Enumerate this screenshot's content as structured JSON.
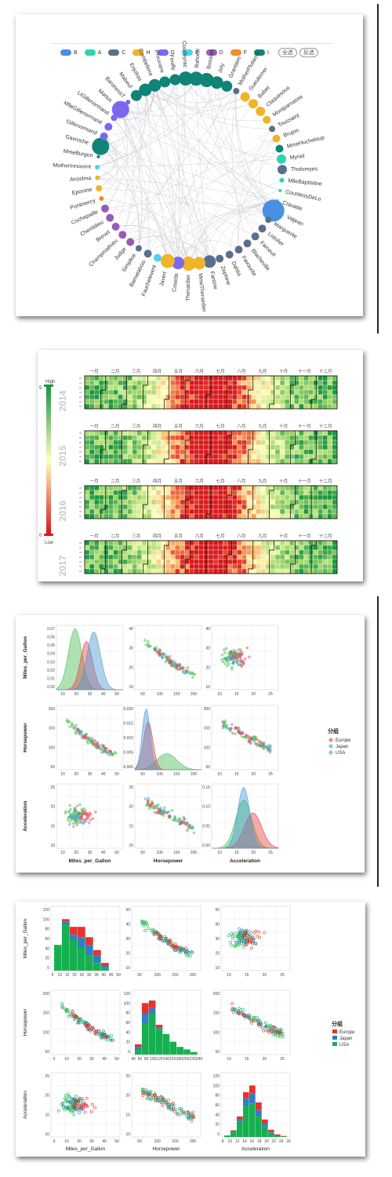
{
  "network": {
    "legend": [
      {
        "label": "B",
        "color": "#4a90e2"
      },
      {
        "label": "A",
        "color": "#2dd4b4"
      },
      {
        "label": "C",
        "color": "#5a6f8f"
      },
      {
        "label": "H",
        "color": "#f0b428"
      },
      {
        "label": "G",
        "color": "#7b68ee"
      },
      {
        "label": "E",
        "color": "#4fd1e8"
      },
      {
        "label": "D",
        "color": "#9b59b6"
      },
      {
        "label": "F",
        "color": "#f08c2a"
      },
      {
        "label": "I",
        "color": "#108476"
      }
    ],
    "buttons": [
      "全选",
      "反选"
    ],
    "nodes": [
      {
        "name": "Bahorel",
        "cat": "I",
        "size": 9
      },
      {
        "name": "Bossuet",
        "cat": "I",
        "size": 9
      },
      {
        "name": "Joly",
        "cat": "I",
        "size": 8
      },
      {
        "name": "Grantaire",
        "cat": "I",
        "size": 7
      },
      {
        "name": "MotherPlutarch",
        "cat": "C",
        "size": 4
      },
      {
        "name": "Gueulemer",
        "cat": "H",
        "size": 6
      },
      {
        "name": "Babet",
        "cat": "H",
        "size": 6
      },
      {
        "name": "Claquesous",
        "cat": "H",
        "size": 6
      },
      {
        "name": "Montparnasse",
        "cat": "H",
        "size": 5
      },
      {
        "name": "Toussaint",
        "cat": "C",
        "size": 4
      },
      {
        "name": "Brujon",
        "cat": "H",
        "size": 5
      },
      {
        "name": "MmeHucheloup",
        "cat": "I",
        "size": 5
      },
      {
        "name": "Myriel",
        "cat": "A",
        "size": 6
      },
      {
        "name": "Tholomyes",
        "cat": "C",
        "size": 6
      },
      {
        "name": "MlleBaptistine",
        "cat": "A",
        "size": 3
      },
      {
        "name": "CountessDeLo",
        "cat": "A",
        "size": 2
      },
      {
        "name": "Cravatte",
        "cat": "A",
        "size": 2
      },
      {
        "name": "Valjean",
        "cat": "B",
        "size": 14
      },
      {
        "name": "Marguerite",
        "cat": "C",
        "size": 4
      },
      {
        "name": "Listolier",
        "cat": "C",
        "size": 5
      },
      {
        "name": "Fameuil",
        "cat": "C",
        "size": 5
      },
      {
        "name": "Blacheville",
        "cat": "C",
        "size": 5
      },
      {
        "name": "Favourite",
        "cat": "C",
        "size": 5
      },
      {
        "name": "Dahlia",
        "cat": "C",
        "size": 5
      },
      {
        "name": "Zephine",
        "cat": "C",
        "size": 5
      },
      {
        "name": "Fantine",
        "cat": "C",
        "size": 8
      },
      {
        "name": "MmeThenardier",
        "cat": "H",
        "size": 8
      },
      {
        "name": "Thenardier",
        "cat": "H",
        "size": 9
      },
      {
        "name": "Cosette",
        "cat": "G",
        "size": 8
      },
      {
        "name": "Javert",
        "cat": "H",
        "size": 9
      },
      {
        "name": "Fauchelevent",
        "cat": "E",
        "size": 5
      },
      {
        "name": "Bamatabois",
        "cat": "C",
        "size": 5
      },
      {
        "name": "Simplice",
        "cat": "C",
        "size": 4
      },
      {
        "name": "Judge",
        "cat": "D",
        "size": 5
      },
      {
        "name": "Champmathieu",
        "cat": "D",
        "size": 5
      },
      {
        "name": "Brevet",
        "cat": "D",
        "size": 5
      },
      {
        "name": "Chenildieu",
        "cat": "D",
        "size": 5
      },
      {
        "name": "Cochepaille",
        "cat": "D",
        "size": 5
      },
      {
        "name": "Pontmercy",
        "cat": "F",
        "size": 3
      },
      {
        "name": "Eponine",
        "cat": "H",
        "size": 4
      },
      {
        "name": "Anzelma",
        "cat": "H",
        "size": 3
      },
      {
        "name": "MotherInnocent",
        "cat": "E",
        "size": 3
      },
      {
        "name": "MmeBurgon",
        "cat": "I",
        "size": 2
      },
      {
        "name": "Gavroche",
        "cat": "I",
        "size": 11
      },
      {
        "name": "Gillenormand",
        "cat": "G",
        "size": 5
      },
      {
        "name": "MlleGillenormand",
        "cat": "G",
        "size": 5
      },
      {
        "name": "LtGillenormand",
        "cat": "G",
        "size": 4
      },
      {
        "name": "Marius",
        "cat": "G",
        "size": 11
      },
      {
        "name": "BaronessT",
        "cat": "G",
        "size": 3
      },
      {
        "name": "Mabeuf",
        "cat": "I",
        "size": 7
      },
      {
        "name": "Enjolras",
        "cat": "I",
        "size": 8
      },
      {
        "name": "Combeferre",
        "cat": "I",
        "size": 8
      },
      {
        "name": "Prouvaire",
        "cat": "I",
        "size": 7
      },
      {
        "name": "Feuilly",
        "cat": "I",
        "size": 7
      },
      {
        "name": "Courfeyrac",
        "cat": "I",
        "size": 9
      }
    ]
  },
  "calendar": {
    "legend_high": "High",
    "legend_low": "Low",
    "legend_max": "5",
    "legend_min": "0",
    "years": [
      "2014",
      "2015",
      "2016",
      "2017"
    ],
    "months": [
      "一月",
      "二月",
      "三月",
      "四月",
      "五月",
      "六月",
      "七月",
      "八月",
      "九月",
      "十月",
      "十一月",
      "十二月"
    ],
    "colors": {
      "low": "#d7191c",
      "mid": "#ffffbf",
      "high": "#1a9641"
    }
  },
  "pairplot": {
    "vars": [
      "Miles_per_Gallon",
      "Horsepower",
      "Acceleration"
    ],
    "legend_title": "分组",
    "groups": [
      {
        "name": "Europe",
        "color": "#e8474b"
      },
      {
        "name": "Japan",
        "color": "#4c9bd6"
      },
      {
        "name": "USA",
        "color": "#4bbf57"
      }
    ],
    "kde_ticks": {
      "mpg_y": [
        "0.07",
        "0.06",
        "0.05",
        "0.04",
        "0.03",
        "0.02",
        "0.01",
        "0.00"
      ],
      "hp_y": [
        "0.020",
        "0.015",
        "0.010",
        "0.005",
        "0.000"
      ],
      "acc_y": [
        "0.15",
        "0.10",
        "0.05",
        "0.00"
      ]
    },
    "axis_ticks": {
      "mpg": [
        "10",
        "20",
        "30",
        "40",
        "50"
      ],
      "hp": [
        "50",
        "100",
        "150",
        "200"
      ],
      "acc": [
        "10",
        "15",
        "20",
        "25"
      ],
      "mpg_y": [
        "40",
        "30",
        "20",
        "10"
      ],
      "hp_y": [
        "200",
        "150",
        "100",
        "50"
      ],
      "acc_y": [
        "25",
        "20",
        "15",
        "10"
      ]
    }
  },
  "pairhist": {
    "vars": [
      "Miles_per_Gallon",
      "Horsepower",
      "Acceleration"
    ],
    "legend_title": "分组",
    "groups": [
      {
        "name": "Europe",
        "color": "#e8312f"
      },
      {
        "name": "Japan",
        "color": "#2f7fc1"
      },
      {
        "name": "USA",
        "color": "#17b050"
      }
    ],
    "mpg_hist": {
      "bins": [
        "5",
        "10",
        "15",
        "20",
        "25",
        "30",
        "35",
        "40",
        "45",
        "50"
      ],
      "usa": [
        50,
        90,
        60,
        45,
        30,
        15,
        5,
        0
      ],
      "japan": [
        0,
        5,
        10,
        20,
        20,
        15,
        5,
        0
      ],
      "europe": [
        0,
        5,
        15,
        20,
        15,
        10,
        5,
        0
      ]
    },
    "hp_hist": {
      "usa": [
        10,
        60,
        80,
        50,
        40,
        25,
        15,
        10,
        5
      ],
      "japan": [
        5,
        20,
        10,
        3,
        0,
        0,
        0,
        0,
        0
      ],
      "europe": [
        5,
        20,
        15,
        5,
        0,
        0,
        0,
        0,
        0
      ]
    },
    "acc_hist": {
      "usa": [
        3,
        10,
        30,
        60,
        65,
        40,
        20,
        8,
        3,
        1
      ],
      "japan": [
        0,
        2,
        5,
        15,
        20,
        12,
        6,
        2,
        0,
        0
      ],
      "europe": [
        0,
        1,
        5,
        12,
        15,
        15,
        8,
        4,
        2,
        1
      ]
    },
    "ticks": {
      "mpg_x": [
        "5",
        "10",
        "15",
        "20",
        "25",
        "30",
        "35",
        "40",
        "45",
        "50"
      ],
      "hp_x": [
        "40",
        "60",
        "80",
        "100",
        "120",
        "140",
        "160",
        "180",
        "200",
        "220",
        "240"
      ],
      "acc_x": [
        "8",
        "10",
        "12",
        "14",
        "16",
        "18",
        "20",
        "22",
        "24",
        "26"
      ],
      "count_y": [
        "120",
        "100",
        "80",
        "60",
        "40",
        "20",
        "0"
      ],
      "mpg_y": [
        "50",
        "40",
        "30",
        "20",
        "10"
      ],
      "hp_y": [
        "200",
        "150",
        "100",
        "50"
      ],
      "acc_y": [
        "25",
        "20",
        "15",
        "10"
      ],
      "mpg_scatter_x": [
        "0",
        "10",
        "20",
        "30",
        "40",
        "50"
      ],
      "hp_scatter_x": [
        "50",
        "100",
        "150",
        "200"
      ],
      "acc_scatter_x": [
        "10",
        "15",
        "20",
        "25"
      ]
    }
  }
}
